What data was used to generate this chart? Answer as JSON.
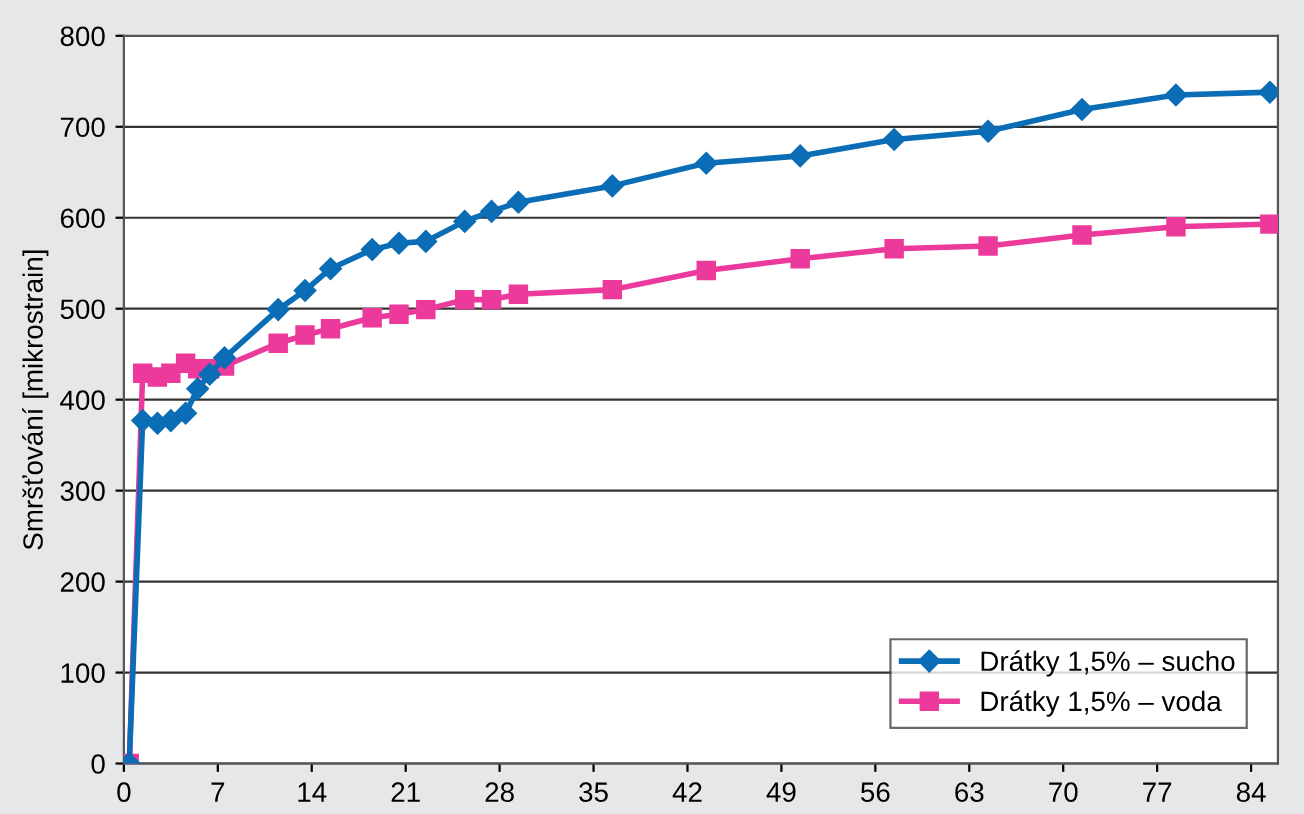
{
  "chart_data": {
    "type": "line",
    "ylabel": "Smršťování [mikrostrain]",
    "x": [
      0.4,
      1.4,
      2.5,
      3.5,
      4.6,
      5.5,
      6.4,
      7.5,
      11.5,
      13.5,
      15.4,
      18.5,
      20.5,
      22.5,
      25.4,
      27.4,
      29.4,
      36.4,
      43.4,
      50.4,
      57.4,
      64.4,
      71.4,
      78.4,
      85.4
    ],
    "series": [
      {
        "name": "Drátky 1,5% – sucho",
        "color": "#0a6db5",
        "marker": "diamond",
        "values": [
          0,
          377,
          374,
          377,
          385,
          412,
          428,
          446,
          499,
          520,
          544,
          565,
          572,
          574,
          596,
          607,
          617,
          635,
          660,
          668,
          686,
          695,
          719,
          735,
          738
        ]
      },
      {
        "name": "Drátky 1,5% – voda",
        "color": "#ec3a9c",
        "marker": "square",
        "values": [
          0,
          429,
          425,
          429,
          440,
          434,
          434,
          437,
          462,
          471,
          478,
          490,
          494,
          499,
          510,
          510,
          516,
          521,
          542,
          555,
          566,
          569,
          581,
          590,
          593
        ]
      }
    ],
    "xlim": [
      0,
      86
    ],
    "xticks": [
      0,
      7,
      14,
      21,
      28,
      35,
      42,
      49,
      56,
      63,
      70,
      77,
      84
    ],
    "ylim": [
      0,
      800
    ],
    "yticks": [
      0,
      100,
      200,
      300,
      400,
      500,
      600,
      700,
      800
    ],
    "grid": "y",
    "legend": "bottom right",
    "line_style": "solid"
  }
}
